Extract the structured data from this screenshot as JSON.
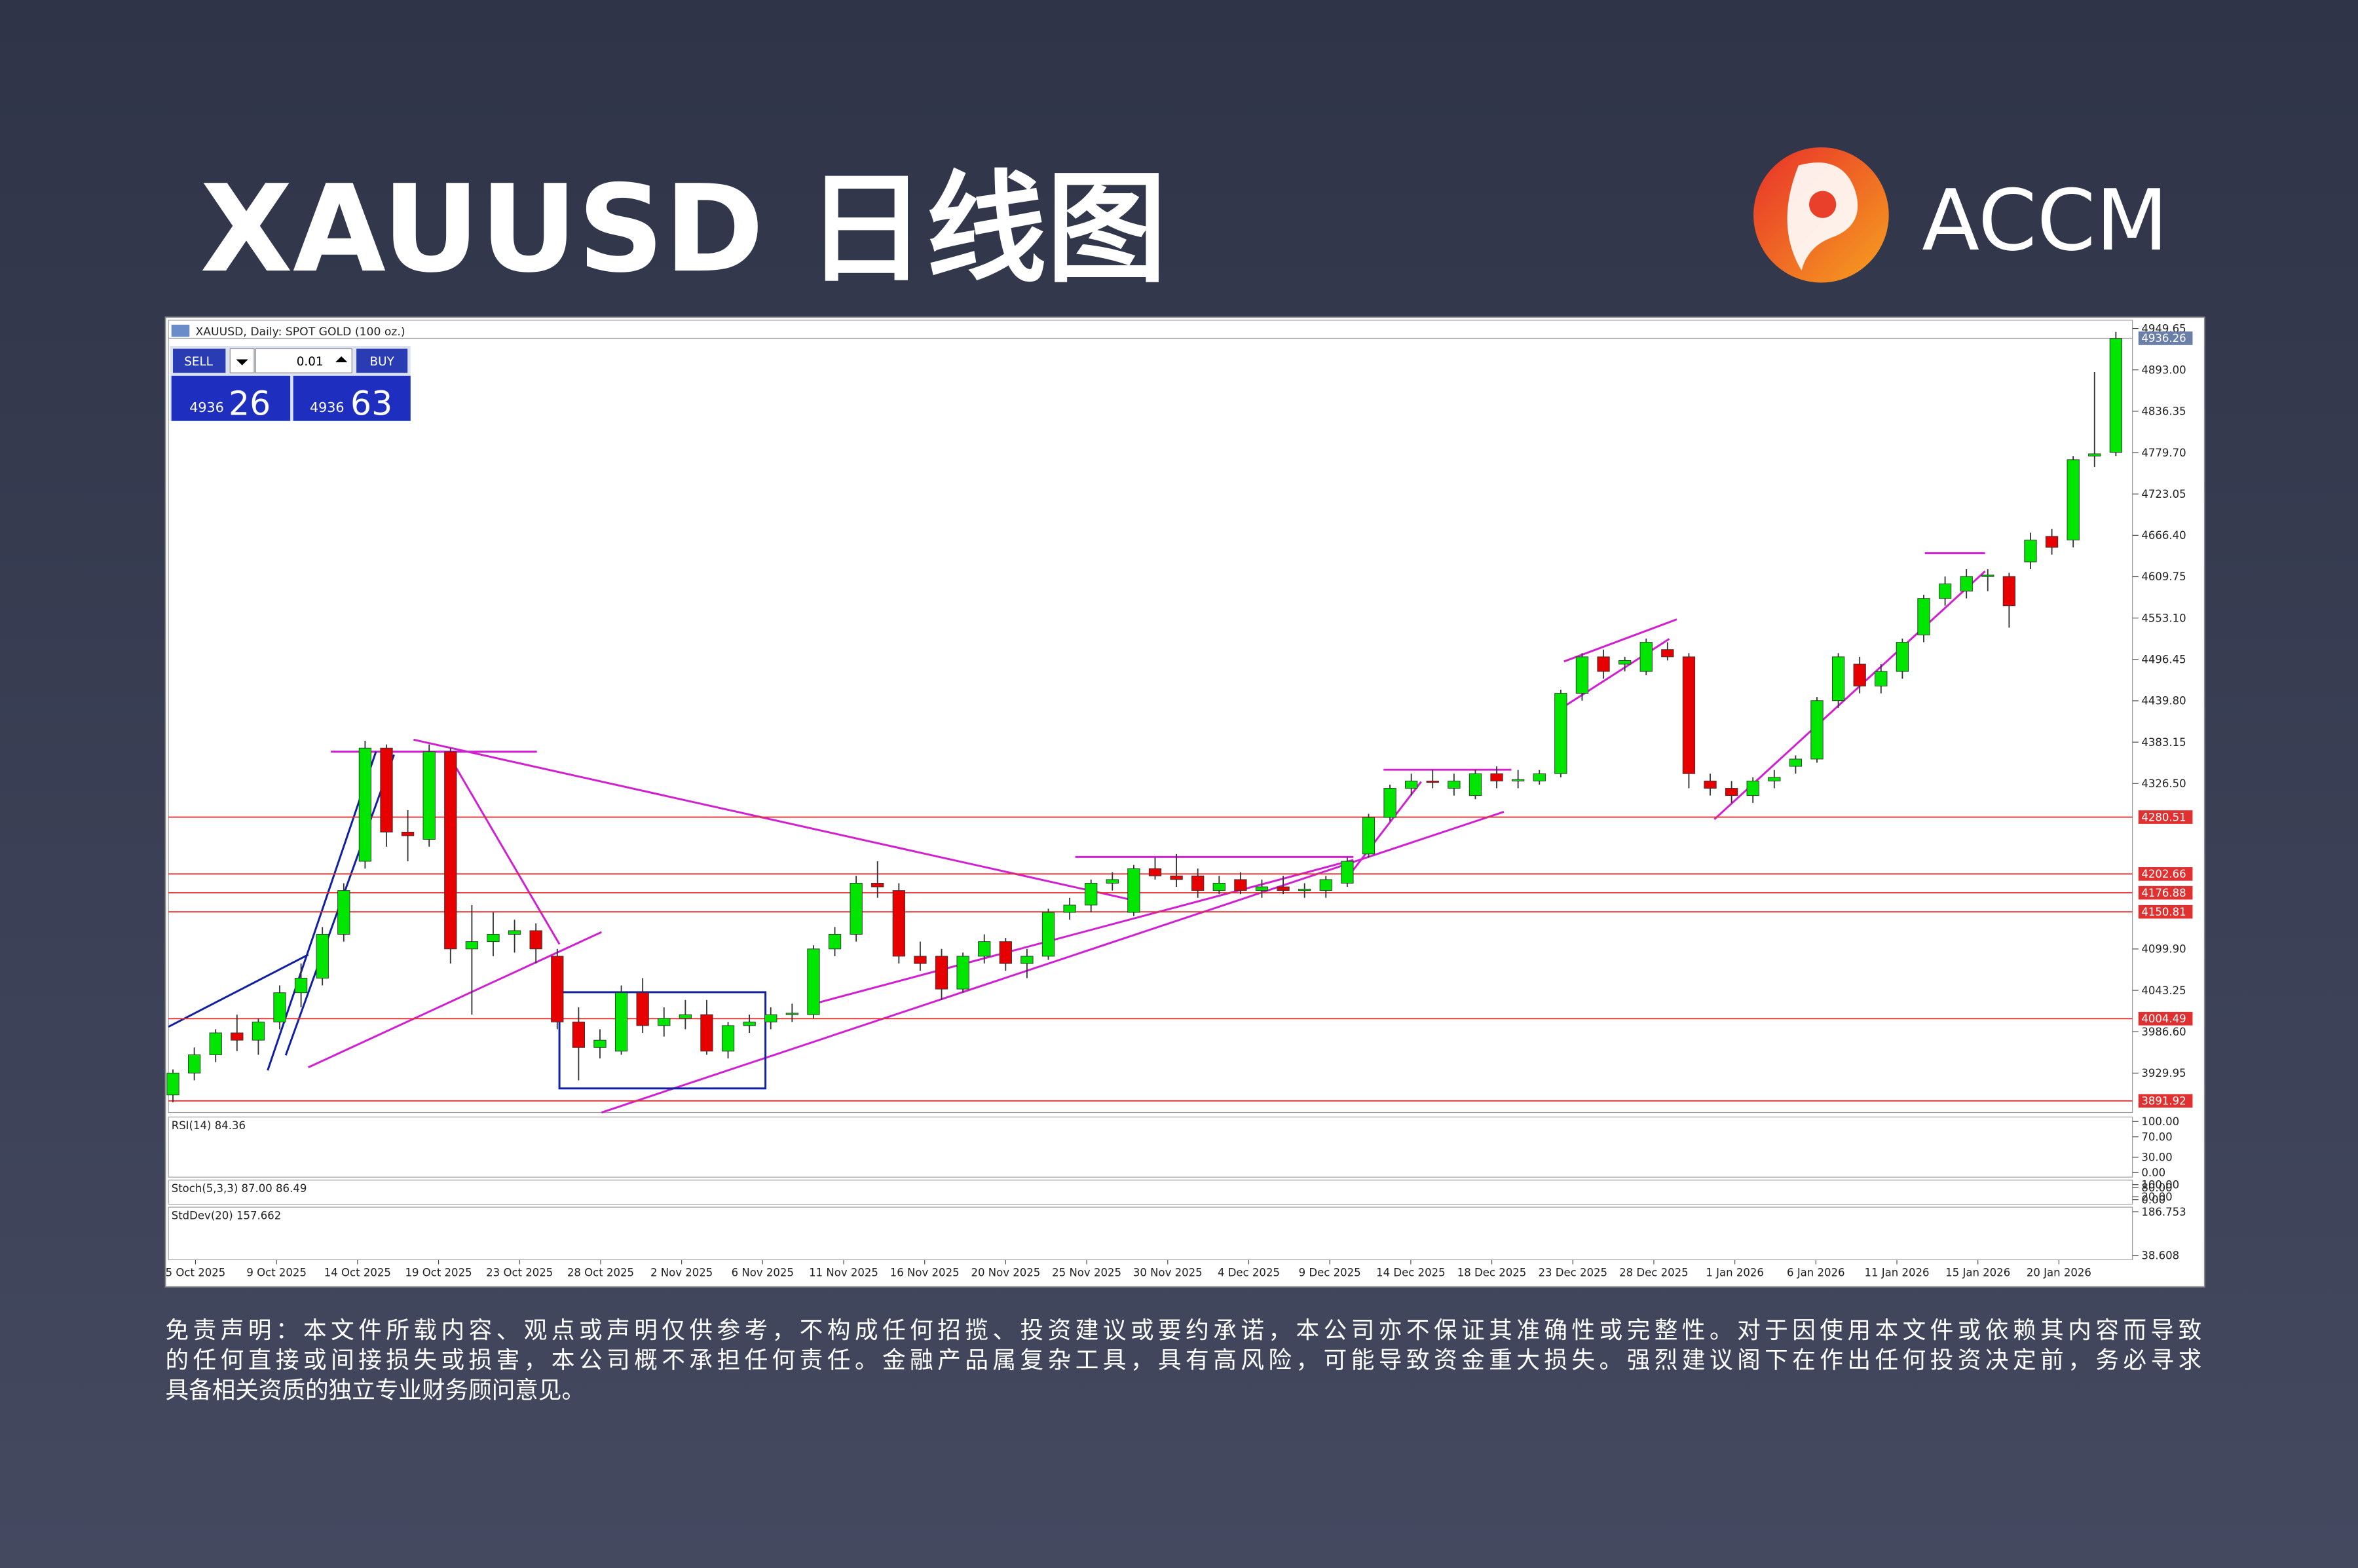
{
  "header": {
    "title": "XAUUSD 日线图",
    "brand": "ACCM"
  },
  "chart_data": {
    "type": "candlestick",
    "title": "XAUUSD, Daily: SPOT GOLD (100 oz.)",
    "trade_panel": {
      "sell": "SELL",
      "buy": "BUY",
      "lot": "0.01",
      "bid_big": "4936",
      "bid": "26",
      "ask_big": "4936",
      "ask": "63"
    },
    "ylim": [
      3876,
      4961
    ],
    "yticks": [
      {
        "value": 4949.65,
        "label": "4949.65"
      },
      {
        "value": 4893.0,
        "label": "4893.00"
      },
      {
        "value": 4836.35,
        "label": "4836.35"
      },
      {
        "value": 4779.7,
        "label": "4779.70"
      },
      {
        "value": 4723.05,
        "label": "4723.05"
      },
      {
        "value": 4666.4,
        "label": "4666.40"
      },
      {
        "value": 4609.75,
        "label": "4609.75"
      },
      {
        "value": 4553.1,
        "label": "4553.10"
      },
      {
        "value": 4496.45,
        "label": "4496.45"
      },
      {
        "value": 4439.8,
        "label": "4439.80"
      },
      {
        "value": 4383.15,
        "label": "4383.15"
      },
      {
        "value": 4326.5,
        "label": "4326.50"
      },
      {
        "value": 4099.9,
        "label": "4099.90"
      },
      {
        "value": 4043.25,
        "label": "4043.25"
      },
      {
        "value": 3986.6,
        "label": "3986.60"
      },
      {
        "value": 3929.95,
        "label": "3929.95"
      }
    ],
    "levels": [
      4280.51,
      4202.66,
      4176.88,
      4150.81,
      4004.49,
      3891.92
    ],
    "last_price": 4936.26,
    "up_color": "#00e600",
    "down_color": "#e60000",
    "level_color": "#e03030",
    "x_labels": [
      "5 Oct 2025",
      "9 Oct 2025",
      "14 Oct 2025",
      "19 Oct 2025",
      "23 Oct 2025",
      "28 Oct 2025",
      "2 Nov 2025",
      "6 Nov 2025",
      "11 Nov 2025",
      "16 Nov 2025",
      "20 Nov 2025",
      "25 Nov 2025",
      "30 Nov 2025",
      "4 Dec 2025",
      "9 Dec 2025",
      "14 Dec 2025",
      "18 Dec 2025",
      "23 Dec 2025",
      "28 Dec 2025",
      "1 Jan 2026",
      "6 Jan 2026",
      "11 Jan 2026",
      "15 Jan 2026",
      "20 Jan 2026"
    ],
    "ohlc": [
      [
        3900,
        3935,
        3890,
        3930
      ],
      [
        3930,
        3965,
        3920,
        3955
      ],
      [
        3955,
        3990,
        3945,
        3985
      ],
      [
        3985,
        4010,
        3960,
        3975
      ],
      [
        3975,
        4005,
        3955,
        4000
      ],
      [
        4000,
        4050,
        3990,
        4040
      ],
      [
        4040,
        4080,
        4020,
        4060
      ],
      [
        4060,
        4130,
        4050,
        4120
      ],
      [
        4120,
        4190,
        4110,
        4180
      ],
      [
        4220,
        4385,
        4210,
        4375
      ],
      [
        4375,
        4380,
        4240,
        4260
      ],
      [
        4260,
        4290,
        4220,
        4255
      ],
      [
        4250,
        4380,
        4240,
        4370
      ],
      [
        4370,
        4375,
        4080,
        4100
      ],
      [
        4100,
        4160,
        4010,
        4110
      ],
      [
        4110,
        4150,
        4090,
        4120
      ],
      [
        4120,
        4140,
        4095,
        4125
      ],
      [
        4125,
        4135,
        4080,
        4100
      ],
      [
        4090,
        4100,
        3990,
        4000
      ],
      [
        4000,
        4020,
        3920,
        3965
      ],
      [
        3965,
        3990,
        3950,
        3975
      ],
      [
        3960,
        4050,
        3955,
        4040
      ],
      [
        4040,
        4060,
        3985,
        3995
      ],
      [
        3995,
        4020,
        3980,
        4005
      ],
      [
        4005,
        4030,
        3990,
        4010
      ],
      [
        4010,
        4030,
        3955,
        3960
      ],
      [
        3960,
        4000,
        3950,
        3995
      ],
      [
        3995,
        4010,
        3985,
        4000
      ],
      [
        4000,
        4020,
        3990,
        4010
      ],
      [
        4010,
        4025,
        4000,
        4012
      ],
      [
        4010,
        4105,
        4005,
        4100
      ],
      [
        4100,
        4130,
        4090,
        4120
      ],
      [
        4120,
        4200,
        4110,
        4190
      ],
      [
        4190,
        4220,
        4170,
        4185
      ],
      [
        4180,
        4190,
        4080,
        4090
      ],
      [
        4090,
        4110,
        4070,
        4080
      ],
      [
        4090,
        4100,
        4030,
        4045
      ],
      [
        4045,
        4095,
        4040,
        4090
      ],
      [
        4090,
        4120,
        4080,
        4110
      ],
      [
        4110,
        4115,
        4070,
        4080
      ],
      [
        4080,
        4100,
        4060,
        4090
      ],
      [
        4090,
        4155,
        4085,
        4150
      ],
      [
        4150,
        4170,
        4140,
        4160
      ],
      [
        4160,
        4195,
        4150,
        4190
      ],
      [
        4190,
        4205,
        4180,
        4195
      ],
      [
        4150,
        4215,
        4145,
        4210
      ],
      [
        4210,
        4225,
        4195,
        4200
      ],
      [
        4200,
        4230,
        4185,
        4195
      ],
      [
        4200,
        4210,
        4170,
        4180
      ],
      [
        4180,
        4200,
        4175,
        4190
      ],
      [
        4195,
        4205,
        4175,
        4180
      ],
      [
        4180,
        4195,
        4170,
        4185
      ],
      [
        4185,
        4200,
        4175,
        4180
      ],
      [
        4180,
        4190,
        4170,
        4182
      ],
      [
        4180,
        4200,
        4170,
        4195
      ],
      [
        4190,
        4225,
        4185,
        4220
      ],
      [
        4230,
        4285,
        4225,
        4280
      ],
      [
        4280,
        4325,
        4275,
        4320
      ],
      [
        4320,
        4340,
        4310,
        4330
      ],
      [
        4330,
        4345,
        4320,
        4328
      ],
      [
        4320,
        4340,
        4310,
        4330
      ],
      [
        4310,
        4345,
        4305,
        4340
      ],
      [
        4340,
        4350,
        4320,
        4330
      ],
      [
        4330,
        4345,
        4320,
        4332
      ],
      [
        4330,
        4345,
        4325,
        4340
      ],
      [
        4340,
        4455,
        4335,
        4450
      ],
      [
        4450,
        4505,
        4440,
        4500
      ],
      [
        4500,
        4510,
        4470,
        4480
      ],
      [
        4490,
        4500,
        4480,
        4495
      ],
      [
        4480,
        4525,
        4475,
        4520
      ],
      [
        4510,
        4520,
        4495,
        4500
      ],
      [
        4500,
        4505,
        4320,
        4340
      ],
      [
        4330,
        4340,
        4310,
        4320
      ],
      [
        4320,
        4330,
        4300,
        4310
      ],
      [
        4310,
        4335,
        4300,
        4330
      ],
      [
        4330,
        4345,
        4320,
        4335
      ],
      [
        4350,
        4365,
        4340,
        4360
      ],
      [
        4360,
        4445,
        4355,
        4440
      ],
      [
        4440,
        4505,
        4430,
        4500
      ],
      [
        4490,
        4500,
        4450,
        4460
      ],
      [
        4460,
        4490,
        4450,
        4480
      ],
      [
        4480,
        4525,
        4470,
        4520
      ],
      [
        4530,
        4585,
        4520,
        4580
      ],
      [
        4580,
        4610,
        4570,
        4600
      ],
      [
        4590,
        4620,
        4580,
        4610
      ],
      [
        4610,
        4620,
        4590,
        4612
      ],
      [
        4610,
        4615,
        4540,
        4570
      ],
      [
        4630,
        4670,
        4620,
        4660
      ],
      [
        4665,
        4675,
        4640,
        4650
      ],
      [
        4660,
        4775,
        4650,
        4770
      ],
      [
        4775,
        4890,
        4760,
        4778
      ],
      [
        4780,
        4945,
        4775,
        4936
      ]
    ],
    "indicators": [
      {
        "label": "RSI(14) 84.36",
        "ylim": [
          0,
          100
        ],
        "yticks": [
          {
            "value": 100,
            "label": "100.00"
          },
          {
            "value": 70,
            "label": "70.00"
          },
          {
            "value": 30,
            "label": "30.00"
          },
          {
            "value": 0,
            "label": "0.00"
          }
        ]
      },
      {
        "label": "Stoch(5,3,3) 87.00 86.49",
        "ylim": [
          0,
          100
        ],
        "yticks": [
          {
            "value": 100,
            "label": "100.00"
          },
          {
            "value": 80,
            "label": "80.00"
          },
          {
            "value": 20,
            "label": "20.00"
          },
          {
            "value": 0,
            "label": "0.00"
          }
        ]
      },
      {
        "label": "StdDev(20) 157.662",
        "ylim": [
          38.608,
          186.753
        ],
        "yticks": [
          {
            "value": 186.753,
            "label": "186.753"
          },
          {
            "value": 38.608,
            "label": "38.608"
          }
        ]
      }
    ]
  },
  "disclaimer": [
    "免责声明：本文件所载内容、观点或声明仅供参考，不构成任何招揽、投资建议或要约承诺，本公司亦不保证其准确性或完整性。对于因使用本文件或依赖其内容而导致",
    "的任何直接或间接损失或损害，本公司概不承担任何责任。金融产品属复杂工具，具有高风险，可能导致资金重大损失。强烈建议阁下在作出任何投资决定前，务必寻求",
    "具备相关资质的独立专业财务顾问意见。"
  ]
}
